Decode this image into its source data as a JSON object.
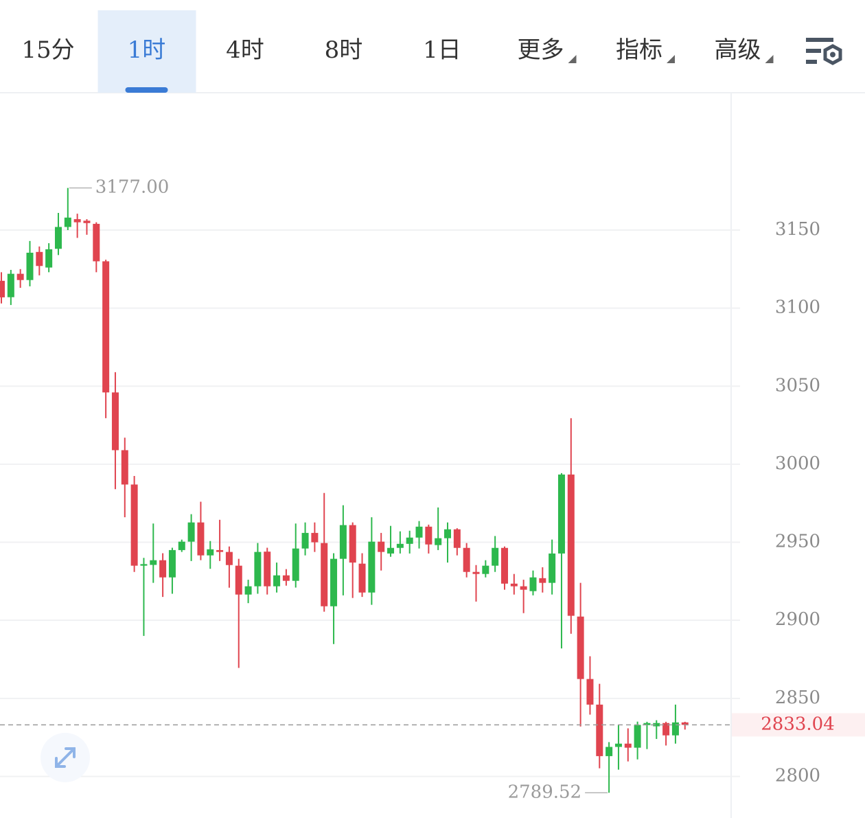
{
  "tabs": [
    {
      "label": "15分"
    },
    {
      "label": "1时",
      "active": true
    },
    {
      "label": "4时"
    },
    {
      "label": "8时"
    },
    {
      "label": "1日"
    },
    {
      "label": "更多",
      "dropdown": true
    },
    {
      "label": "指标",
      "dropdown": true
    },
    {
      "label": "高级",
      "dropdown": true
    }
  ],
  "chart_data": {
    "type": "candlestick",
    "up_color": "#2db84d",
    "down_color": "#e0444f",
    "open": [
      3117.5,
      3107,
      3122,
      3118,
      3136,
      3126,
      3138,
      3152,
      3157,
      3156,
      3154,
      3130,
      3046,
      3009,
      2987,
      2935,
      2935.5,
      2938.5,
      2927.5,
      2945,
      2950.4,
      2962.7,
      2941.6,
      2945,
      2943.8,
      2935,
      2916.5,
      2921.8,
      2944,
      2921.8,
      2928.8,
      2925.3,
      2946,
      2956,
      2949.5,
      2909,
      2939.4,
      2961,
      2936.3,
      2917.8,
      2950.4,
      2942.8,
      2946.4,
      2949,
      2953,
      2960,
      2948.2,
      2952.6,
      2958.3,
      2946.4,
      2931,
      2929.7,
      2935,
      2946.4,
      2923.5,
      2921.8,
      2918.7,
      2927,
      2924,
      2942.8,
      2993.4,
      2902.4,
      2862.4,
      2846,
      2813,
      2818.9,
      2821,
      2818.4,
      2832.9,
      2832.1,
      2834.2,
      2826.3,
      2834.6
    ],
    "high": [
      3123,
      3124.5,
      3125,
      3143,
      3139.5,
      3141.6,
      3161,
      3177,
      3160.5,
      3157,
      3155,
      3131,
      3059,
      3017,
      2992.5,
      2940,
      2962,
      2943,
      2946.5,
      2951.7,
      2968,
      2976,
      2950.8,
      2964.4,
      2947.3,
      2939.4,
      2926,
      2949.5,
      2946.5,
      2937,
      2932.8,
      2962,
      2962.7,
      2962.7,
      2981.6,
      2943,
      2973.7,
      2962.7,
      2943,
      2966,
      2956,
      2960.5,
      2957,
      2957.4,
      2963.6,
      2961.3,
      2972.3,
      2962.7,
      2959,
      2949.5,
      2935.4,
      2938.5,
      2954,
      2947.3,
      2929.7,
      2926,
      2931.9,
      2934,
      2951.7,
      2994.3,
      3029.5,
      2924,
      2877,
      2859.3,
      2822,
      2833,
      2830.8,
      2835.1,
      2835,
      2836,
      2835,
      2846,
      2835
    ],
    "low": [
      3103,
      3102,
      3113,
      3114,
      3121,
      3123,
      3134,
      3150,
      3145,
      3147,
      3123,
      3029.5,
      2984,
      2966,
      2931,
      2890,
      2924,
      2915,
      2917,
      2943.8,
      2938,
      2938.5,
      2933,
      2938,
      2920.9,
      2869.5,
      2911,
      2917,
      2916.5,
      2917.8,
      2922.2,
      2921,
      2941.6,
      2943.8,
      2905.5,
      2884.8,
      2916,
      2914.3,
      2915,
      2909.9,
      2931.9,
      2940.7,
      2942.8,
      2942.8,
      2946,
      2942.8,
      2945,
      2937,
      2941.6,
      2927.5,
      2912,
      2927.5,
      2931,
      2919.6,
      2916.5,
      2904.6,
      2916,
      2917.8,
      2916.5,
      2882,
      2891.4,
      2832,
      2839.6,
      2805.2,
      2789.52,
      2804.3,
      2809.6,
      2810.9,
      2817.5,
      2824,
      2819.8,
      2821,
      2830
    ],
    "close": [
      3106.9,
      3122,
      3118,
      3135.5,
      3127,
      3137.7,
      3152,
      3158,
      3155,
      3154.5,
      3130,
      3046,
      3009,
      2987,
      2935,
      2936,
      2938.5,
      2927.5,
      2945,
      2950.4,
      2962.7,
      2941.6,
      2945.5,
      2943.8,
      2935.4,
      2916.5,
      2921.8,
      2943.8,
      2921.8,
      2928.8,
      2925.3,
      2946,
      2956,
      2950,
      2909,
      2939.4,
      2961,
      2937,
      2917.8,
      2950.4,
      2943.8,
      2946.4,
      2949,
      2953,
      2960,
      2948.6,
      2952.6,
      2958.3,
      2946.4,
      2931,
      2929.7,
      2935,
      2946.4,
      2923.5,
      2921.8,
      2919.6,
      2927.5,
      2924,
      2942.8,
      2993.4,
      2902.9,
      2862.4,
      2846,
      2813,
      2818.9,
      2821,
      2818.4,
      2833,
      2834.2,
      2834.2,
      2826.3,
      2834.6,
      2833.04
    ],
    "ylim": [
      2776,
      3238
    ],
    "yticks": [
      2800,
      2850,
      2900,
      2950,
      3000,
      3050,
      3100,
      3150
    ],
    "grid": true,
    "last_price": 2833.04,
    "annotations": [
      {
        "value": 3177,
        "label": "3177.00",
        "side": "right"
      },
      {
        "value": 2789.52,
        "label": "2789.52",
        "side": "left"
      }
    ]
  }
}
